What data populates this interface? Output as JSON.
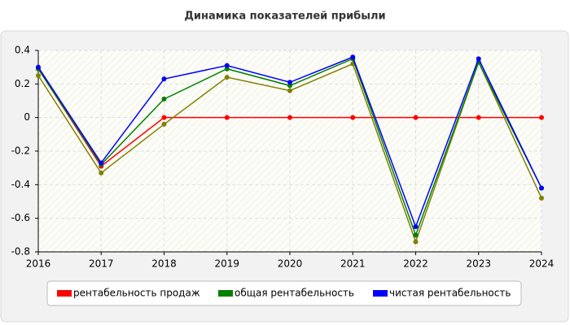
{
  "chart_data": {
    "type": "line",
    "title": "Динамика показателей прибыли",
    "x": [
      2016,
      2017,
      2018,
      2019,
      2020,
      2021,
      2022,
      2023,
      2024
    ],
    "xlim": [
      2016,
      2024
    ],
    "xticks": [
      2016,
      2017,
      2018,
      2019,
      2020,
      2021,
      2022,
      2023,
      2024
    ],
    "ylim": [
      -0.8,
      0.4
    ],
    "yticks": [
      0.4,
      0.2,
      0,
      -0.2,
      -0.4,
      -0.6,
      -0.8
    ],
    "grid": true,
    "series": [
      {
        "name": "рентабельность продаж",
        "color": "#ff0000",
        "values": [
          0.29,
          -0.29,
          0,
          0,
          0,
          0,
          0,
          0,
          0
        ]
      },
      {
        "name": "общая рентабельность",
        "color": "#008000",
        "values": [
          0.29,
          -0.28,
          0.11,
          0.29,
          0.19,
          0.35,
          -0.7,
          0.33,
          -0.42
        ]
      },
      {
        "name": "чистая рентабельность",
        "color": "#0000ff",
        "values": [
          0.3,
          -0.27,
          0.23,
          0.31,
          0.21,
          0.36,
          -0.65,
          0.35,
          -0.42
        ]
      },
      {
        "color": "#808000",
        "values": [
          0.25,
          -0.33,
          -0.04,
          0.24,
          0.16,
          0.32,
          -0.74,
          0.33,
          -0.48
        ]
      }
    ]
  }
}
